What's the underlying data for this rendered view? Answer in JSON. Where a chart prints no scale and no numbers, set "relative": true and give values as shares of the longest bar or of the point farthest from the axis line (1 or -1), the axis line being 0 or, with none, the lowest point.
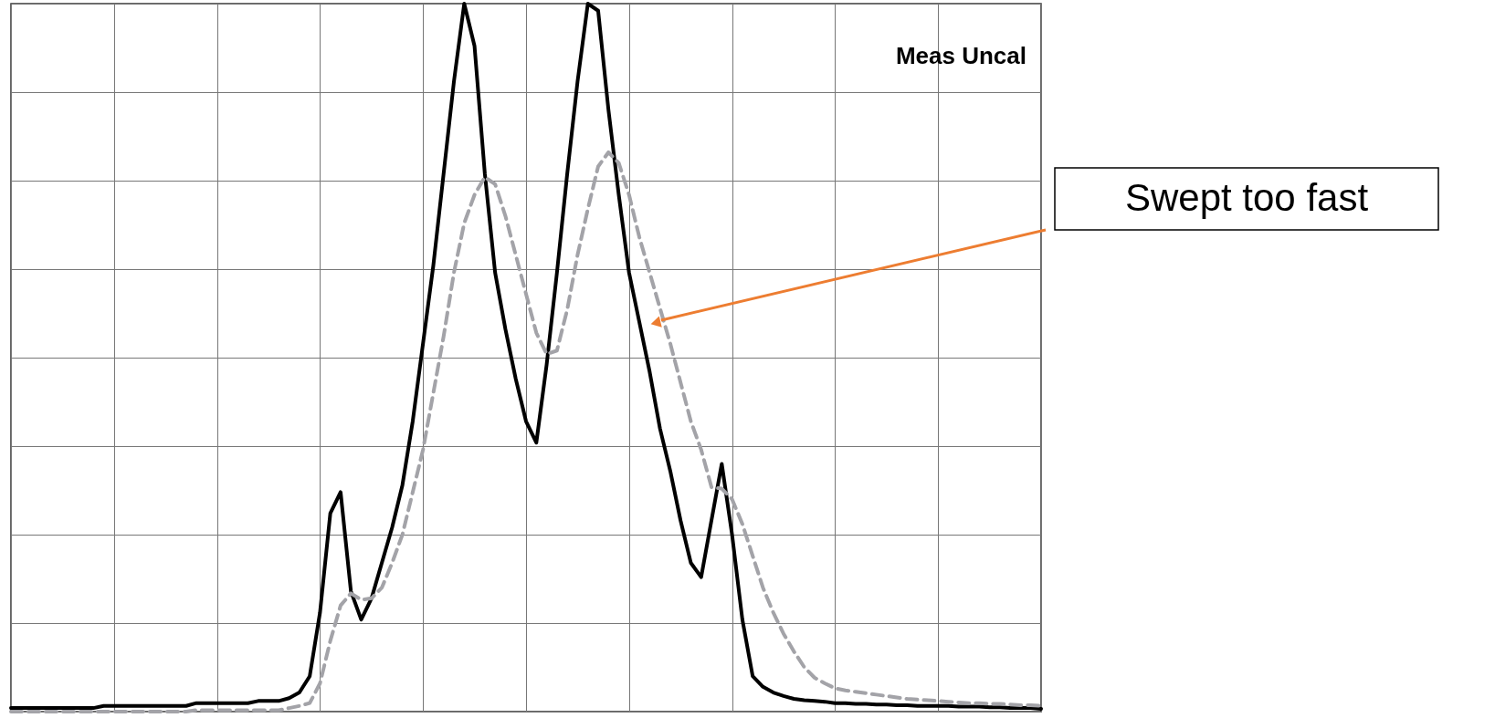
{
  "chart_data": {
    "type": "line",
    "relative": true,
    "categories": [
      null,
      null,
      null,
      null,
      null,
      null,
      null,
      null,
      null,
      null,
      null,
      null,
      null,
      null,
      null,
      null,
      null,
      null,
      null,
      null,
      null,
      null,
      null,
      null,
      null,
      null,
      null,
      null,
      null,
      null,
      null,
      null,
      null,
      null,
      null,
      null,
      null,
      null,
      null,
      null,
      null,
      null,
      null,
      null,
      null,
      null,
      null,
      null,
      null,
      null,
      null,
      null,
      null,
      null,
      null,
      null,
      null,
      null,
      null,
      null,
      null,
      null,
      null,
      null,
      null,
      null,
      null,
      null,
      null,
      null,
      null,
      null,
      null,
      null,
      null,
      null,
      null,
      null,
      null,
      null,
      null,
      null,
      null,
      null,
      null,
      null,
      null,
      null,
      null,
      null,
      null,
      null,
      null,
      null,
      null,
      null,
      null,
      null,
      null,
      null,
      null
    ],
    "grid": true,
    "marker": "none",
    "series": [
      {
        "color": "#000000",
        "line_style": "solid",
        "values": [
          0.005,
          0.005,
          0.005,
          0.005,
          0.005,
          0.005,
          0.005,
          0.005,
          0.005,
          0.008,
          0.008,
          0.008,
          0.008,
          0.008,
          0.008,
          0.008,
          0.008,
          0.008,
          0.012,
          0.012,
          0.012,
          0.012,
          0.012,
          0.012,
          0.015,
          0.015,
          0.015,
          0.019,
          0.027,
          0.05,
          0.14,
          0.28,
          0.31,
          0.17,
          0.13,
          0.16,
          0.21,
          0.26,
          0.32,
          0.41,
          0.52,
          0.63,
          0.76,
          0.89,
          1,
          0.94,
          0.76,
          0.62,
          0.54,
          0.47,
          0.41,
          0.38,
          0.49,
          0.62,
          0.76,
          0.89,
          1,
          0.99,
          0.85,
          0.73,
          0.62,
          0.55,
          0.48,
          0.4,
          0.34,
          0.27,
          0.21,
          0.19,
          0.27,
          0.35,
          0.25,
          0.13,
          0.05,
          0.035,
          0.027,
          0.022,
          0.018,
          0.016,
          0.015,
          0.014,
          0.012,
          0.012,
          0.011,
          0.011,
          0.01,
          0.01,
          0.009,
          0.009,
          0.008,
          0.008,
          0.008,
          0.008,
          0.007,
          0.007,
          0.007,
          0.006,
          0.006,
          0.005,
          0.005,
          0.005,
          0.004
        ]
      },
      {
        "color": "#a3a3a8",
        "line_style": "dashed",
        "values": [
          0,
          0,
          0,
          0,
          0,
          0,
          0,
          0,
          0,
          0,
          0,
          0,
          0,
          0,
          0,
          0,
          0,
          0,
          0.002,
          0.002,
          0.002,
          0.002,
          0.002,
          0.002,
          0.002,
          0.002,
          0.002,
          0.005,
          0.008,
          0.012,
          0.04,
          0.1,
          0.15,
          0.167,
          0.158,
          0.16,
          0.175,
          0.21,
          0.25,
          0.31,
          0.37,
          0.45,
          0.53,
          0.62,
          0.69,
          0.73,
          0.755,
          0.745,
          0.7,
          0.645,
          0.59,
          0.535,
          0.505,
          0.51,
          0.568,
          0.645,
          0.71,
          0.77,
          0.79,
          0.775,
          0.73,
          0.67,
          0.62,
          0.57,
          0.52,
          0.465,
          0.41,
          0.37,
          0.317,
          0.315,
          0.3,
          0.265,
          0.22,
          0.175,
          0.14,
          0.11,
          0.085,
          0.063,
          0.048,
          0.04,
          0.033,
          0.03,
          0.028,
          0.026,
          0.024,
          0.022,
          0.02,
          0.018,
          0.017,
          0.016,
          0.015,
          0.014,
          0.013,
          0.012,
          0.012,
          0.011,
          0.011,
          0.01,
          0.009,
          0.009,
          0.008
        ]
      }
    ],
    "annotations": [
      "Meas Uncal",
      "Swept too fast"
    ]
  }
}
